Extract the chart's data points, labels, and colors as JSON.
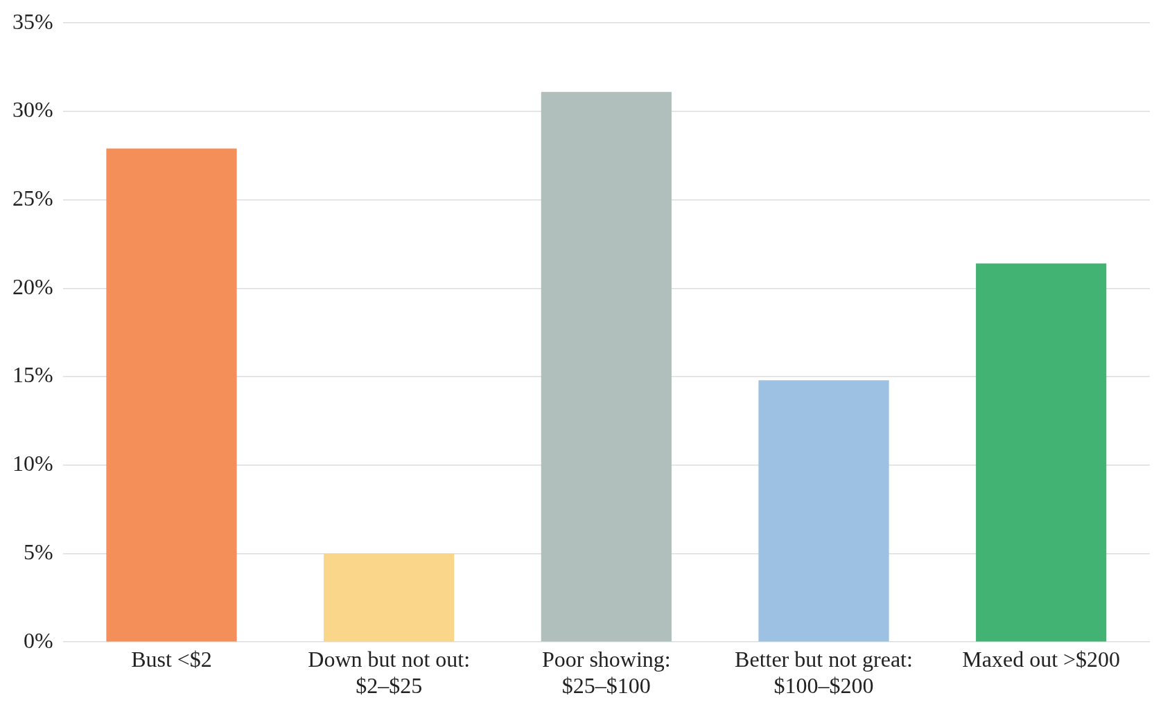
{
  "chart_data": {
    "type": "bar",
    "categories": [
      "Bust <$2",
      "Down but not out: $2–$25",
      "Poor showing: $25–$100",
      "Better but not great: $100–$200",
      "Maxed out >$200"
    ],
    "values": [
      27.9,
      5.0,
      31.1,
      14.8,
      21.4
    ],
    "colors": [
      "#f58f59",
      "#f9d68a",
      "#b0bfbb",
      "#9cc1e2",
      "#43b374"
    ],
    "ylim": [
      0,
      35
    ],
    "yticks": [
      {
        "value": 0,
        "label": "0%"
      },
      {
        "value": 5,
        "label": "5%"
      },
      {
        "value": 10,
        "label": "10%"
      },
      {
        "value": 15,
        "label": "15%"
      },
      {
        "value": 20,
        "label": "20%"
      },
      {
        "value": 25,
        "label": "25%"
      },
      {
        "value": 30,
        "label": "30%"
      },
      {
        "value": 35,
        "label": "35%"
      }
    ],
    "grid": "y",
    "legend": false
  }
}
